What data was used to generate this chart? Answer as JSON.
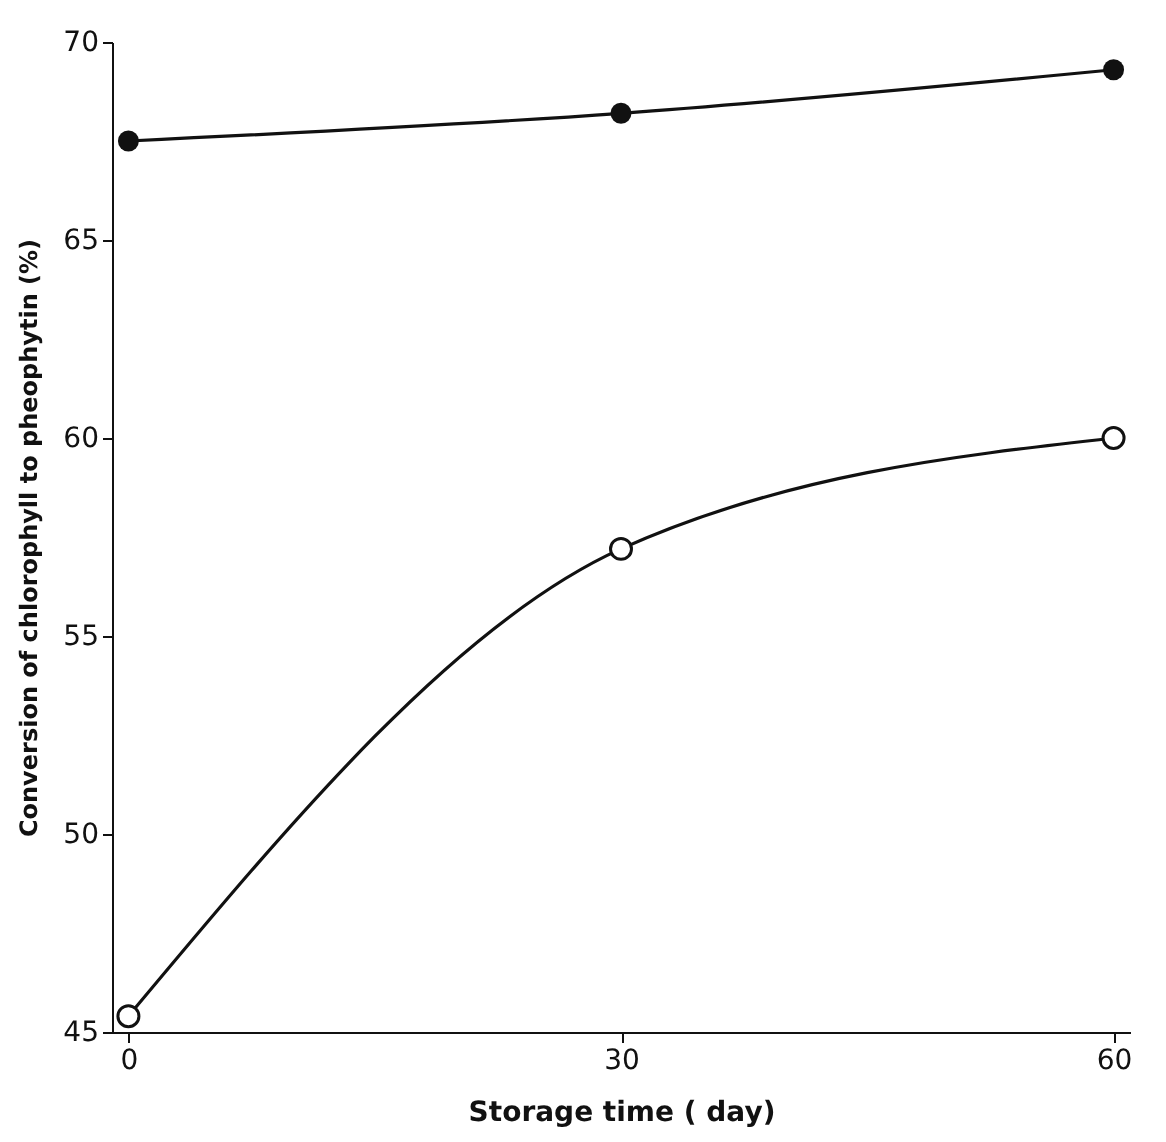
{
  "chart_data": {
    "type": "line",
    "xlabel": "Storage time ( day)",
    "ylabel": "Conversion of chlorophyll to pheophytin (%)",
    "x": [
      0,
      30,
      60
    ],
    "xlim": [
      -1,
      61
    ],
    "xticks": [
      0,
      30,
      60
    ],
    "ylim": [
      45,
      70
    ],
    "yticks": [
      45,
      50,
      55,
      60,
      65,
      70
    ],
    "marker": "circle",
    "line_style": "solid",
    "series": [
      {
        "color": "#111111",
        "values": [
          67.5,
          68.2,
          69.3
        ]
      },
      {
        "color": "#111111",
        "values": [
          45.4,
          57.2,
          60.0
        ]
      }
    ]
  }
}
